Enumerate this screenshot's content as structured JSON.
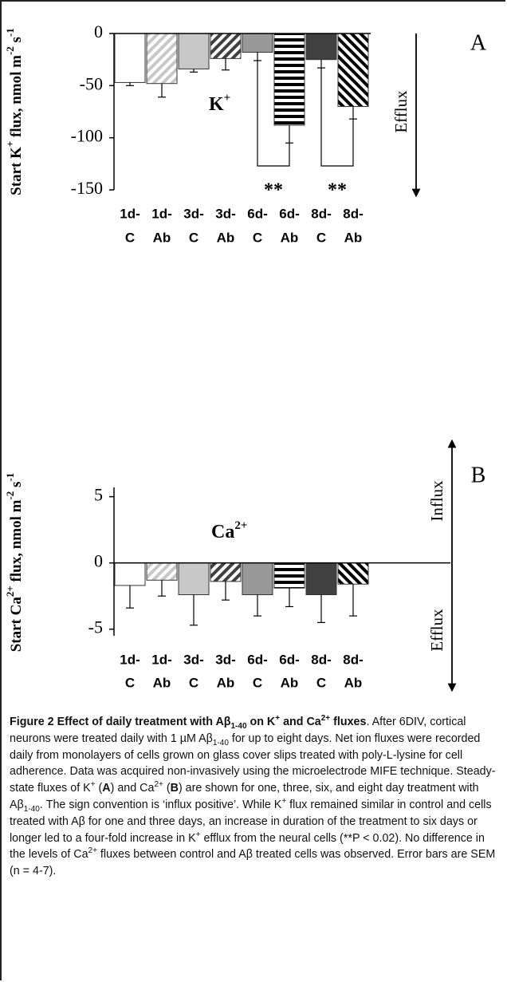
{
  "chart_data": [
    {
      "type": "bar",
      "panel": "A",
      "ylabel": [
        "Start K",
        "+",
        " flux, nmol m",
        "-2",
        " s",
        "-1"
      ],
      "label": [
        "K",
        "+"
      ],
      "direction_labels": [
        "Efflux"
      ],
      "annotations": [
        "**",
        "**"
      ],
      "categories": [
        [
          "1d-",
          "C"
        ],
        [
          "1d-",
          "Ab"
        ],
        [
          "3d-",
          "C"
        ],
        [
          "3d-",
          "Ab"
        ],
        [
          "6d-",
          "C"
        ],
        [
          "6d-",
          "Ab"
        ],
        [
          "8d-",
          "C"
        ],
        [
          "8d-",
          "Ab"
        ]
      ],
      "values": [
        -47,
        -48,
        -34,
        -24,
        -18,
        -88,
        -25,
        -70
      ],
      "errors": [
        3,
        13,
        3,
        11,
        8,
        17,
        8,
        12
      ],
      "colors": [
        "#ffffff",
        "#c8c8c8",
        "#c8c8c8",
        "#404040",
        "#999999",
        "#000000",
        "#404040",
        "#000000"
      ],
      "hatch": [
        null,
        "up",
        null,
        "up",
        null,
        "horizontal",
        null,
        "down"
      ],
      "ylim": [
        -150,
        0
      ],
      "yticks": [
        0,
        -50,
        -100,
        -150
      ]
    },
    {
      "type": "bar",
      "panel": "B",
      "ylabel": [
        "Start Ca",
        "2+",
        " flux, nmol m",
        "-2",
        " s",
        "-1"
      ],
      "label": [
        "Ca",
        "2+"
      ],
      "direction_labels": [
        "Influx",
        "Efflux"
      ],
      "categories": [
        [
          "1d-",
          "C"
        ],
        [
          "1d-",
          "Ab"
        ],
        [
          "3d-",
          "C"
        ],
        [
          "3d-",
          "Ab"
        ],
        [
          "6d-",
          "C"
        ],
        [
          "6d-",
          "Ab"
        ],
        [
          "8d-",
          "C"
        ],
        [
          "8d-",
          "Ab"
        ]
      ],
      "values": [
        -1.7,
        -1.3,
        -2.4,
        -1.4,
        -2.4,
        -1.9,
        -2.4,
        -1.6
      ],
      "errors": [
        1.7,
        1.2,
        2.3,
        1.4,
        1.6,
        1.4,
        2.1,
        2.4
      ],
      "colors": [
        "#ffffff",
        "#c8c8c8",
        "#c8c8c8",
        "#404040",
        "#999999",
        "#000000",
        "#404040",
        "#000000"
      ],
      "hatch": [
        null,
        "up",
        null,
        "up",
        null,
        "horizontal",
        null,
        "down"
      ],
      "ylim": [
        -5.5,
        5.7
      ],
      "yticks": [
        5,
        0,
        -5
      ]
    }
  ],
  "caption": [
    {
      "t": "Figure 2 Effect of daily treatment with Aβ",
      "s": "b"
    },
    {
      "t": "1-40",
      "s": "bsub"
    },
    {
      "t": " on K",
      "s": "b"
    },
    {
      "t": "+",
      "s": "bsup"
    },
    {
      "t": " and Ca",
      "s": "b"
    },
    {
      "t": "2+",
      "s": "bsup"
    },
    {
      "t": " fluxes",
      "s": "b"
    },
    ". After 6DIV, cortical neurons were treated daily with 1 µM Aβ",
    {
      "t": "1-40",
      "s": "sub"
    },
    " for up to eight days. Net ion fluxes were recorded daily from monolayers of cells grown on glass cover slips treated with poly-L-lysine for cell adherence. Data was acquired non-invasively using the microelectrode MIFE technique. Steady-state fluxes of K",
    {
      "t": "+",
      "s": "sup"
    },
    " (",
    {
      "t": "A",
      "s": "b"
    },
    ") and Ca",
    {
      "t": "2+",
      "s": "sup"
    },
    " (",
    {
      "t": "B",
      "s": "b"
    },
    ") are shown for one, three, six, and eight day treatment with Aβ",
    {
      "t": "1-40",
      "s": "sub"
    },
    ". The sign convention is ‘influx positive’. While K",
    {
      "t": "+",
      "s": "sup"
    },
    " flux remained similar in control and cells treated with Aβ for one and three days, an increase in duration of the treatment to six days or longer led to a four-fold increase in K",
    {
      "t": "+",
      "s": "sup"
    },
    " efflux from the neural cells (**P < 0.02). No difference in the levels of Ca",
    {
      "t": "2+",
      "s": "sup"
    },
    " fluxes between control and Aβ treated cells was observed. Error bars are SEM (n = 4-7)."
  ]
}
